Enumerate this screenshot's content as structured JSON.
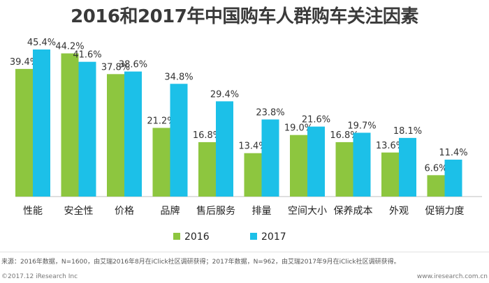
{
  "chart_data": {
    "type": "bar",
    "title": "2016和2017年中国购车人群购车关注因素",
    "categories": [
      "性能",
      "安全性",
      "价格",
      "品牌",
      "售后服务",
      "排量",
      "空间大小",
      "保养成本",
      "外观",
      "促销力度"
    ],
    "series": [
      {
        "name": "2016",
        "color": "#8dc63f",
        "values": [
          39.4,
          44.2,
          37.8,
          21.2,
          16.8,
          13.4,
          19.0,
          16.8,
          13.6,
          6.6
        ],
        "labels": [
          "39.4%",
          "44.2%",
          "37.8%",
          "21.2%",
          "16.8%",
          "13.4%",
          "19.0%",
          "16.8%",
          "13.6%",
          "6.6%"
        ]
      },
      {
        "name": "2017",
        "color": "#1cc0e8",
        "values": [
          45.4,
          41.6,
          38.6,
          34.8,
          29.4,
          23.8,
          21.6,
          19.7,
          18.1,
          11.4
        ],
        "labels": [
          "45.4%",
          "41.6%",
          "38.6%",
          "34.8%",
          "29.4%",
          "23.8%",
          "21.6%",
          "19.7%",
          "18.1%",
          "11.4%"
        ]
      }
    ],
    "legend_position": "bottom",
    "ylim": [
      0,
      50
    ],
    "grid": false
  },
  "footer": {
    "source": "来源：2016年数据，N=1600，由艾瑞2016年8月在iClick社区调研获得；2017年数据，N=962，由艾瑞2017年9月在iClick社区调研获得。",
    "copyright": "©2017.12 iResearch Inc",
    "site": "www.iresearch.com.cn"
  }
}
